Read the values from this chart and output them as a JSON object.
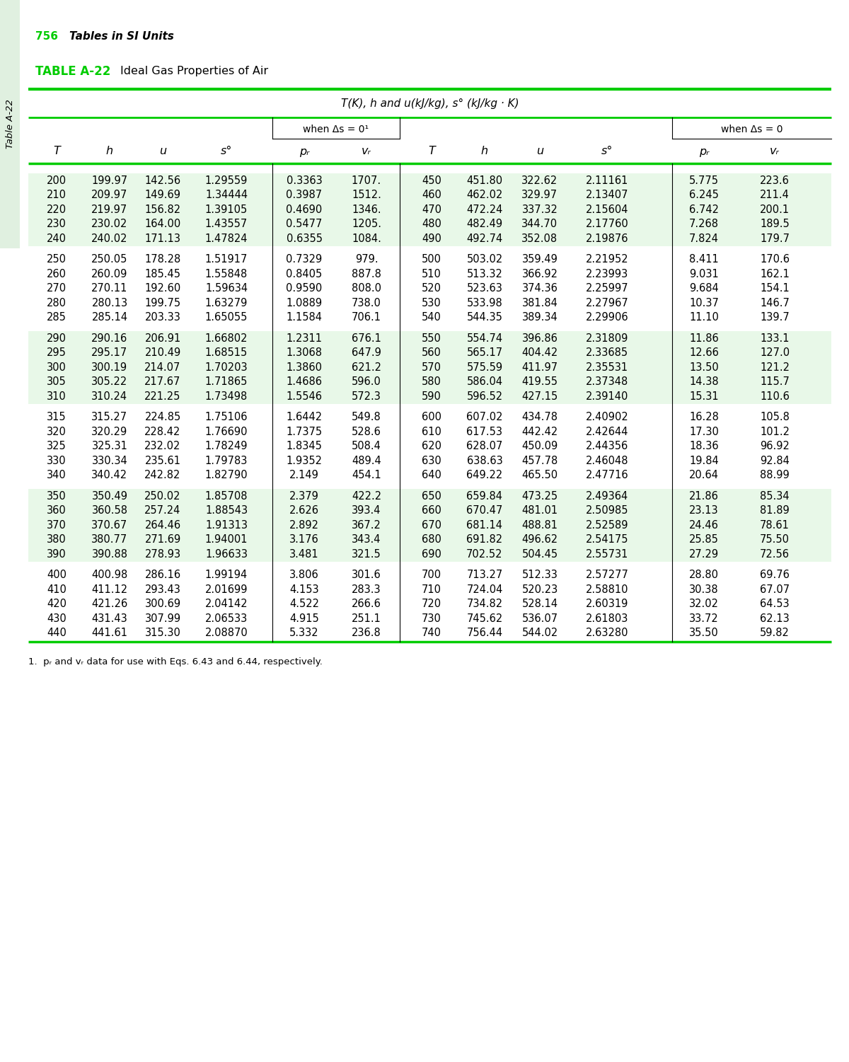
{
  "page_number": "756",
  "page_header": "Tables in SI Units",
  "table_label": "TABLE A-22",
  "table_title": "Ideal Gas Properties of Air",
  "unit_header": "T(K), h and u(kJ/kg), s° (kJ/kg · K)",
  "col_group1_header": "when Δs = 0¹",
  "col_group2_header": "when Δs = 0",
  "footnote": "1.  pᵣ and vᵣ data for use with Eqs. 6.43 and 6.44, respectively.",
  "sidebar_text": "Table A-22",
  "green_color": "#00cc00",
  "light_green_bg": "#e8f8e8",
  "sidebar_bg": "#e0f0e0",
  "data": [
    [
      200,
      "199.97",
      "142.56",
      "1.29559",
      "0.3363",
      "1707.",
      450,
      "451.80",
      "322.62",
      "2.11161",
      "5.775",
      "223.6"
    ],
    [
      210,
      "209.97",
      "149.69",
      "1.34444",
      "0.3987",
      "1512.",
      460,
      "462.02",
      "329.97",
      "2.13407",
      "6.245",
      "211.4"
    ],
    [
      220,
      "219.97",
      "156.82",
      "1.39105",
      "0.4690",
      "1346.",
      470,
      "472.24",
      "337.32",
      "2.15604",
      "6.742",
      "200.1"
    ],
    [
      230,
      "230.02",
      "164.00",
      "1.43557",
      "0.5477",
      "1205.",
      480,
      "482.49",
      "344.70",
      "2.17760",
      "7.268",
      "189.5"
    ],
    [
      240,
      "240.02",
      "171.13",
      "1.47824",
      "0.6355",
      "1084.",
      490,
      "492.74",
      "352.08",
      "2.19876",
      "7.824",
      "179.7"
    ],
    [
      250,
      "250.05",
      "178.28",
      "1.51917",
      "0.7329",
      "979.",
      500,
      "503.02",
      "359.49",
      "2.21952",
      "8.411",
      "170.6"
    ],
    [
      260,
      "260.09",
      "185.45",
      "1.55848",
      "0.8405",
      "887.8",
      510,
      "513.32",
      "366.92",
      "2.23993",
      "9.031",
      "162.1"
    ],
    [
      270,
      "270.11",
      "192.60",
      "1.59634",
      "0.9590",
      "808.0",
      520,
      "523.63",
      "374.36",
      "2.25997",
      "9.684",
      "154.1"
    ],
    [
      280,
      "280.13",
      "199.75",
      "1.63279",
      "1.0889",
      "738.0",
      530,
      "533.98",
      "381.84",
      "2.27967",
      "10.37",
      "146.7"
    ],
    [
      285,
      "285.14",
      "203.33",
      "1.65055",
      "1.1584",
      "706.1",
      540,
      "544.35",
      "389.34",
      "2.29906",
      "11.10",
      "139.7"
    ],
    [
      290,
      "290.16",
      "206.91",
      "1.66802",
      "1.2311",
      "676.1",
      550,
      "554.74",
      "396.86",
      "2.31809",
      "11.86",
      "133.1"
    ],
    [
      295,
      "295.17",
      "210.49",
      "1.68515",
      "1.3068",
      "647.9",
      560,
      "565.17",
      "404.42",
      "2.33685",
      "12.66",
      "127.0"
    ],
    [
      300,
      "300.19",
      "214.07",
      "1.70203",
      "1.3860",
      "621.2",
      570,
      "575.59",
      "411.97",
      "2.35531",
      "13.50",
      "121.2"
    ],
    [
      305,
      "305.22",
      "217.67",
      "1.71865",
      "1.4686",
      "596.0",
      580,
      "586.04",
      "419.55",
      "2.37348",
      "14.38",
      "115.7"
    ],
    [
      310,
      "310.24",
      "221.25",
      "1.73498",
      "1.5546",
      "572.3",
      590,
      "596.52",
      "427.15",
      "2.39140",
      "15.31",
      "110.6"
    ],
    [
      315,
      "315.27",
      "224.85",
      "1.75106",
      "1.6442",
      "549.8",
      600,
      "607.02",
      "434.78",
      "2.40902",
      "16.28",
      "105.8"
    ],
    [
      320,
      "320.29",
      "228.42",
      "1.76690",
      "1.7375",
      "528.6",
      610,
      "617.53",
      "442.42",
      "2.42644",
      "17.30",
      "101.2"
    ],
    [
      325,
      "325.31",
      "232.02",
      "1.78249",
      "1.8345",
      "508.4",
      620,
      "628.07",
      "450.09",
      "2.44356",
      "18.36",
      "96.92"
    ],
    [
      330,
      "330.34",
      "235.61",
      "1.79783",
      "1.9352",
      "489.4",
      630,
      "638.63",
      "457.78",
      "2.46048",
      "19.84",
      "92.84"
    ],
    [
      340,
      "340.42",
      "242.82",
      "1.82790",
      "2.149",
      "454.1",
      640,
      "649.22",
      "465.50",
      "2.47716",
      "20.64",
      "88.99"
    ],
    [
      350,
      "350.49",
      "250.02",
      "1.85708",
      "2.379",
      "422.2",
      650,
      "659.84",
      "473.25",
      "2.49364",
      "21.86",
      "85.34"
    ],
    [
      360,
      "360.58",
      "257.24",
      "1.88543",
      "2.626",
      "393.4",
      660,
      "670.47",
      "481.01",
      "2.50985",
      "23.13",
      "81.89"
    ],
    [
      370,
      "370.67",
      "264.46",
      "1.91313",
      "2.892",
      "367.2",
      670,
      "681.14",
      "488.81",
      "2.52589",
      "24.46",
      "78.61"
    ],
    [
      380,
      "380.77",
      "271.69",
      "1.94001",
      "3.176",
      "343.4",
      680,
      "691.82",
      "496.62",
      "2.54175",
      "25.85",
      "75.50"
    ],
    [
      390,
      "390.88",
      "278.93",
      "1.96633",
      "3.481",
      "321.5",
      690,
      "702.52",
      "504.45",
      "2.55731",
      "27.29",
      "72.56"
    ],
    [
      400,
      "400.98",
      "286.16",
      "1.99194",
      "3.806",
      "301.6",
      700,
      "713.27",
      "512.33",
      "2.57277",
      "28.80",
      "69.76"
    ],
    [
      410,
      "411.12",
      "293.43",
      "2.01699",
      "4.153",
      "283.3",
      710,
      "724.04",
      "520.23",
      "2.58810",
      "30.38",
      "67.07"
    ],
    [
      420,
      "421.26",
      "300.69",
      "2.04142",
      "4.522",
      "266.6",
      720,
      "734.82",
      "528.14",
      "2.60319",
      "32.02",
      "64.53"
    ],
    [
      430,
      "431.43",
      "307.99",
      "2.06533",
      "4.915",
      "251.1",
      730,
      "745.62",
      "536.07",
      "2.61803",
      "33.72",
      "62.13"
    ],
    [
      440,
      "441.61",
      "315.30",
      "2.08870",
      "5.332",
      "236.8",
      740,
      "756.44",
      "544.02",
      "2.63280",
      "35.50",
      "59.82"
    ]
  ]
}
